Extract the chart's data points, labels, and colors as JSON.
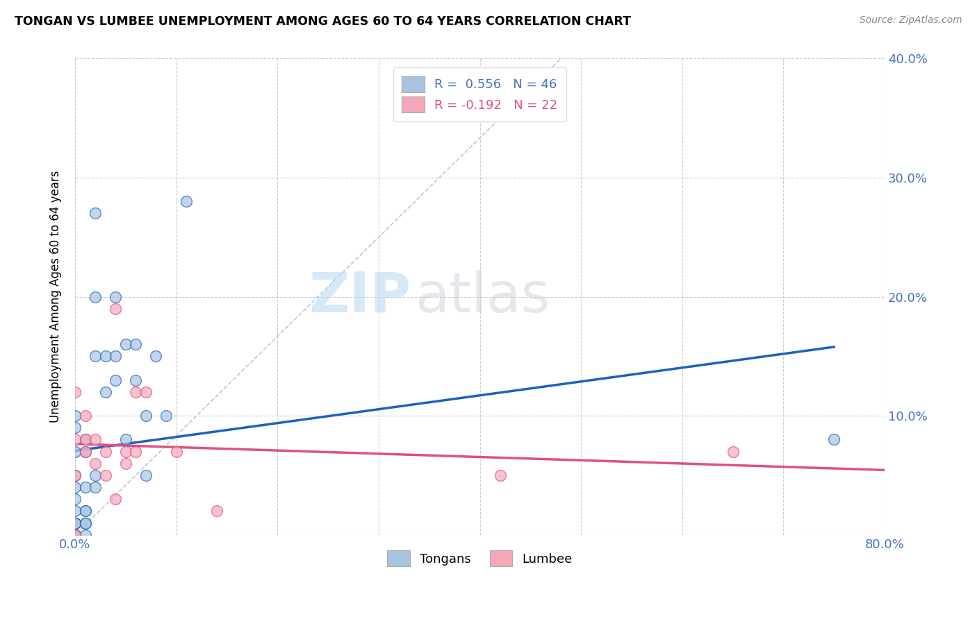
{
  "title": "TONGAN VS LUMBEE UNEMPLOYMENT AMONG AGES 60 TO 64 YEARS CORRELATION CHART",
  "source": "Source: ZipAtlas.com",
  "ylabel": "Unemployment Among Ages 60 to 64 years",
  "xlim": [
    0,
    0.8
  ],
  "ylim": [
    0,
    0.4
  ],
  "tongan_R": 0.556,
  "tongan_N": 46,
  "lumbee_R": -0.192,
  "lumbee_N": 22,
  "tongan_color": "#a8c4e0",
  "lumbee_color": "#f4a7b9",
  "tongan_line_color": "#2060c0",
  "lumbee_line_color": "#e05080",
  "diagonal_color": "#b0c8e8",
  "legend_label_tongan": "Tongans",
  "legend_label_lumbee": "Lumbee",
  "watermark_zip": "ZIP",
  "watermark_atlas": "atlas",
  "tongan_x": [
    0.0,
    0.0,
    0.0,
    0.0,
    0.0,
    0.0,
    0.0,
    0.0,
    0.0,
    0.0,
    0.0,
    0.0,
    0.0,
    0.0,
    0.0,
    0.0,
    0.0,
    0.0,
    0.01,
    0.01,
    0.01,
    0.01,
    0.01,
    0.01,
    0.01,
    0.01,
    0.02,
    0.02,
    0.02,
    0.02,
    0.02,
    0.03,
    0.03,
    0.04,
    0.04,
    0.04,
    0.05,
    0.05,
    0.06,
    0.06,
    0.07,
    0.07,
    0.08,
    0.09,
    0.11,
    0.75
  ],
  "tongan_y": [
    0.0,
    0.0,
    0.0,
    0.0,
    0.0,
    0.0,
    0.01,
    0.01,
    0.01,
    0.01,
    0.01,
    0.02,
    0.03,
    0.04,
    0.05,
    0.07,
    0.09,
    0.1,
    0.0,
    0.01,
    0.01,
    0.02,
    0.02,
    0.04,
    0.07,
    0.08,
    0.04,
    0.05,
    0.15,
    0.2,
    0.27,
    0.12,
    0.15,
    0.13,
    0.15,
    0.2,
    0.08,
    0.16,
    0.13,
    0.16,
    0.05,
    0.1,
    0.15,
    0.1,
    0.28,
    0.08
  ],
  "lumbee_x": [
    0.0,
    0.0,
    0.0,
    0.0,
    0.01,
    0.01,
    0.01,
    0.02,
    0.02,
    0.03,
    0.03,
    0.04,
    0.04,
    0.05,
    0.05,
    0.06,
    0.06,
    0.07,
    0.1,
    0.14,
    0.42,
    0.65
  ],
  "lumbee_y": [
    0.0,
    0.05,
    0.08,
    0.12,
    0.07,
    0.08,
    0.1,
    0.06,
    0.08,
    0.05,
    0.07,
    0.03,
    0.19,
    0.06,
    0.07,
    0.07,
    0.12,
    0.12,
    0.07,
    0.02,
    0.05,
    0.07
  ],
  "diagonal_line": {
    "x0": 0.0,
    "x1": 0.48,
    "y0": 0.0,
    "y1": 0.4
  }
}
